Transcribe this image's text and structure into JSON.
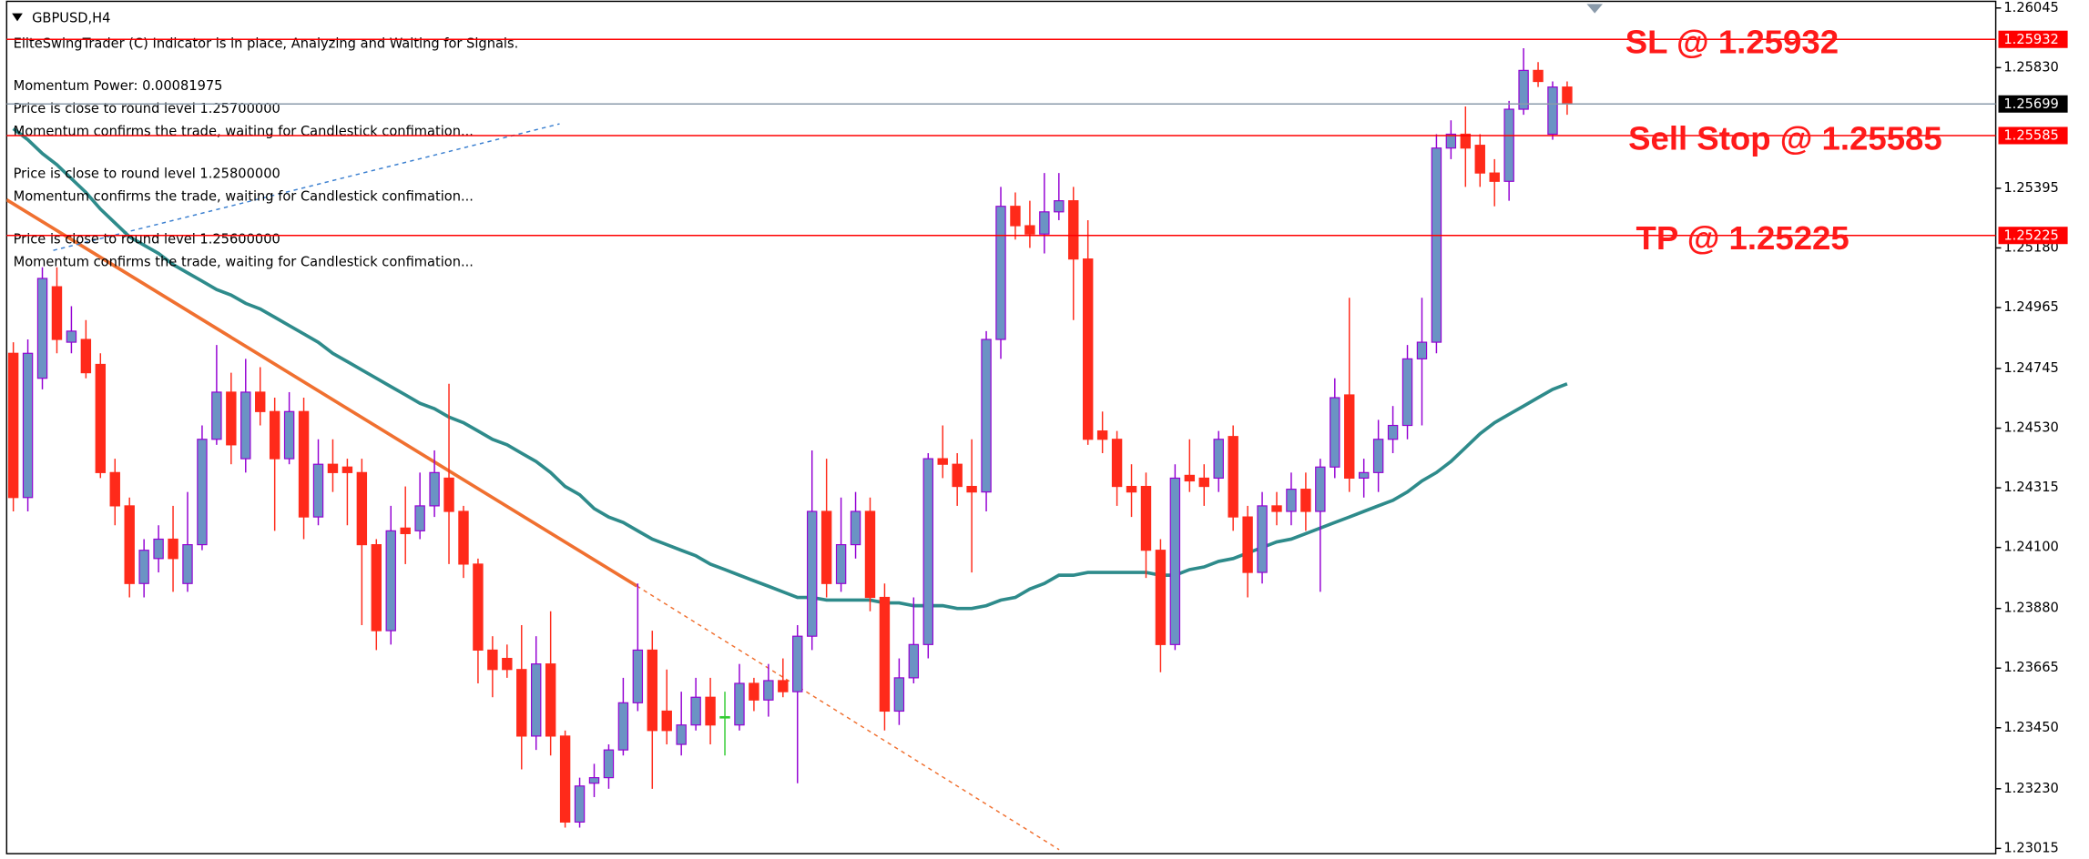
{
  "chart_data": {
    "type": "candlestick",
    "title": "GBPUSD,H4",
    "annotations": [
      "EliteSwingTrader (C) Indicator is in place, Analyzing and Waiting for Signals.",
      "Momentum Power: 0.00081975",
      "Price is close to round level 1.25700000",
      "Momentum confirms the trade, waiting for Candlestick confimation...",
      "Price is close to round level 1.25800000",
      "Momentum confirms the trade, waiting for Candlestick confimation...",
      "Price is close to round level 1.25600000",
      "Momentum confirms the trade, waiting for Candlestick confimation..."
    ],
    "ylim": [
      1.22996,
      1.26069
    ],
    "yticks": [
      1.26045,
      {
        "value": 1.2583,
        "label": "1.25830"
      },
      1.25395,
      {
        "value": 1.2518,
        "label": "1.25180"
      },
      1.24965,
      1.24745,
      {
        "value": 1.2453,
        "label": "1.24530"
      },
      1.24315,
      {
        "value": 1.241,
        "label": "1.24100"
      },
      {
        "value": 1.2388,
        "label": "1.23880"
      },
      1.23665,
      {
        "value": 1.2345,
        "label": "1.23450"
      },
      {
        "value": 1.2323,
        "label": "1.23230"
      },
      1.23015
    ],
    "colors": {
      "up_body": "#6b93c4",
      "up_wick": "#9400d3",
      "down": "#ff2a1a",
      "doji": "#33cc33"
    },
    "ohlc": [
      [
        1.248,
        1.2484,
        1.2423,
        1.2428
      ],
      [
        1.2428,
        1.2485,
        1.2423,
        1.248
      ],
      [
        1.2471,
        1.2511,
        1.2467,
        1.2507
      ],
      [
        1.2504,
        1.2511,
        1.248,
        1.2485
      ],
      [
        1.2484,
        1.2497,
        1.248,
        1.2488
      ],
      [
        1.2485,
        1.2492,
        1.2471,
        1.2473
      ],
      [
        1.2476,
        1.248,
        1.2435,
        1.2437
      ],
      [
        1.2437,
        1.2442,
        1.2418,
        1.2425
      ],
      [
        1.2425,
        1.2428,
        1.2392,
        1.2397
      ],
      [
        1.2397,
        1.2413,
        1.2392,
        1.2409
      ],
      [
        1.2406,
        1.2418,
        1.2401,
        1.2413
      ],
      [
        1.2413,
        1.2425,
        1.2394,
        1.2406
      ],
      [
        1.2397,
        1.243,
        1.2394,
        1.2411
      ],
      [
        1.2411,
        1.2454,
        1.2409,
        1.2449
      ],
      [
        1.2449,
        1.2483,
        1.2447,
        1.2466
      ],
      [
        1.2466,
        1.2473,
        1.244,
        1.2447
      ],
      [
        1.2442,
        1.2478,
        1.2437,
        1.2466
      ],
      [
        1.2466,
        1.2475,
        1.2454,
        1.2459
      ],
      [
        1.2459,
        1.2464,
        1.2416,
        1.2442
      ],
      [
        1.2442,
        1.2466,
        1.244,
        1.2459
      ],
      [
        1.2459,
        1.2464,
        1.2413,
        1.2421
      ],
      [
        1.2421,
        1.2449,
        1.2418,
        1.244
      ],
      [
        1.244,
        1.2449,
        1.243,
        1.2437
      ],
      [
        1.2439,
        1.2442,
        1.2418,
        1.2437
      ],
      [
        1.2437,
        1.2442,
        1.2382,
        1.2411
      ],
      [
        1.2411,
        1.2413,
        1.2373,
        1.238
      ],
      [
        1.238,
        1.2425,
        1.2375,
        1.2416
      ],
      [
        1.2417,
        1.2432,
        1.2404,
        1.2415
      ],
      [
        1.2416,
        1.2437,
        1.2413,
        1.2425
      ],
      [
        1.2425,
        1.2445,
        1.2421,
        1.2437
      ],
      [
        1.2435,
        1.2469,
        1.2404,
        1.2423
      ],
      [
        1.2423,
        1.2425,
        1.2399,
        1.2404
      ],
      [
        1.2404,
        1.2406,
        1.2361,
        1.2373
      ],
      [
        1.2373,
        1.2378,
        1.2356,
        1.2366
      ],
      [
        1.237,
        1.2375,
        1.2363,
        1.2366
      ],
      [
        1.2366,
        1.2382,
        1.233,
        1.2342
      ],
      [
        1.2342,
        1.2378,
        1.2337,
        1.2368
      ],
      [
        1.2368,
        1.2387,
        1.2335,
        1.2342
      ],
      [
        1.2342,
        1.2344,
        1.2309,
        1.2311
      ],
      [
        1.2311,
        1.2327,
        1.2309,
        1.2324
      ],
      [
        1.2325,
        1.2332,
        1.232,
        1.2327
      ],
      [
        1.2327,
        1.2339,
        1.2323,
        1.2337
      ],
      [
        1.2337,
        1.2363,
        1.2335,
        1.2354
      ],
      [
        1.2354,
        1.2397,
        1.2351,
        1.2373
      ],
      [
        1.2373,
        1.238,
        1.2323,
        1.2344
      ],
      [
        1.2351,
        1.2366,
        1.2339,
        1.2344
      ],
      [
        1.2339,
        1.2358,
        1.2335,
        1.2346
      ],
      [
        1.2346,
        1.2363,
        1.2344,
        1.2356
      ],
      [
        1.2356,
        1.2363,
        1.2339,
        1.2346
      ],
      [
        1.2349,
        1.2358,
        1.2335,
        1.2349
      ],
      [
        1.2346,
        1.2368,
        1.2344,
        1.2361
      ],
      [
        1.2361,
        1.2363,
        1.2351,
        1.2355
      ],
      [
        1.2355,
        1.2368,
        1.2349,
        1.2362
      ],
      [
        1.2362,
        1.237,
        1.2356,
        1.2358
      ],
      [
        1.2358,
        1.2382,
        1.2325,
        1.2378
      ],
      [
        1.2378,
        1.2445,
        1.2373,
        1.2423
      ],
      [
        1.2423,
        1.2442,
        1.2392,
        1.2397
      ],
      [
        1.2397,
        1.2428,
        1.2394,
        1.2411
      ],
      [
        1.2411,
        1.243,
        1.2406,
        1.2423
      ],
      [
        1.2423,
        1.2428,
        1.2387,
        1.2392
      ],
      [
        1.2392,
        1.2397,
        1.2344,
        1.2351
      ],
      [
        1.2351,
        1.237,
        1.2346,
        1.2363
      ],
      [
        1.2363,
        1.2392,
        1.2361,
        1.2375
      ],
      [
        1.2375,
        1.2444,
        1.237,
        1.2442
      ],
      [
        1.2442,
        1.2454,
        1.2435,
        1.244
      ],
      [
        1.244,
        1.2444,
        1.2425,
        1.2432
      ],
      [
        1.2432,
        1.2449,
        1.2401,
        1.243
      ],
      [
        1.243,
        1.2488,
        1.2423,
        1.2485
      ],
      [
        1.2485,
        1.254,
        1.2478,
        1.2533
      ],
      [
        1.2533,
        1.2538,
        1.2521,
        1.2526
      ],
      [
        1.2526,
        1.2535,
        1.2518,
        1.2523
      ],
      [
        1.2523,
        1.2545,
        1.2516,
        1.2531
      ],
      [
        1.2531,
        1.2545,
        1.2528,
        1.2535
      ],
      [
        1.2535,
        1.254,
        1.2492,
        1.2514
      ],
      [
        1.2514,
        1.2528,
        1.2447,
        1.2449
      ],
      [
        1.2452,
        1.2459,
        1.2444,
        1.2449
      ],
      [
        1.2449,
        1.2452,
        1.2425,
        1.2432
      ],
      [
        1.2432,
        1.244,
        1.2421,
        1.243
      ],
      [
        1.2432,
        1.2437,
        1.2399,
        1.2409
      ],
      [
        1.2409,
        1.2413,
        1.2365,
        1.2375
      ],
      [
        1.2375,
        1.244,
        1.2373,
        1.2435
      ],
      [
        1.2436,
        1.2449,
        1.243,
        1.2434
      ],
      [
        1.2435,
        1.244,
        1.2425,
        1.2432
      ],
      [
        1.2435,
        1.2452,
        1.243,
        1.2449
      ],
      [
        1.245,
        1.2454,
        1.2416,
        1.2421
      ],
      [
        1.2421,
        1.2425,
        1.2392,
        1.2401
      ],
      [
        1.2401,
        1.243,
        1.2397,
        1.2425
      ],
      [
        1.2425,
        1.243,
        1.2418,
        1.2423
      ],
      [
        1.2423,
        1.2437,
        1.2418,
        1.2431
      ],
      [
        1.2431,
        1.2437,
        1.2416,
        1.2423
      ],
      [
        1.2423,
        1.2442,
        1.2394,
        1.2439
      ],
      [
        1.2439,
        1.2471,
        1.2435,
        1.2464
      ],
      [
        1.2465,
        1.25,
        1.243,
        1.2435
      ],
      [
        1.2435,
        1.2442,
        1.2428,
        1.2437
      ],
      [
        1.2437,
        1.2456,
        1.243,
        1.2449
      ],
      [
        1.2449,
        1.2461,
        1.2444,
        1.2454
      ],
      [
        1.2454,
        1.2483,
        1.2449,
        1.2478
      ],
      [
        1.2478,
        1.25,
        1.2454,
        1.2484
      ],
      [
        1.2484,
        1.2559,
        1.248,
        1.2554
      ],
      [
        1.2554,
        1.2564,
        1.255,
        1.2559
      ],
      [
        1.2559,
        1.2569,
        1.254,
        1.2554
      ],
      [
        1.2555,
        1.2559,
        1.254,
        1.2545
      ],
      [
        1.2545,
        1.255,
        1.2533,
        1.2542
      ],
      [
        1.2542,
        1.2571,
        1.2535,
        1.2568
      ],
      [
        1.2568,
        1.259,
        1.2566,
        1.2582
      ],
      [
        1.2582,
        1.2585,
        1.2576,
        1.2578
      ],
      [
        1.2559,
        1.2578,
        1.2557,
        1.2576
      ],
      [
        1.2576,
        1.2578,
        1.2566,
        1.257
      ]
    ],
    "ma": {
      "color": "#2e8b8b",
      "values": [
        1.2561,
        1.2557,
        1.2552,
        1.2548,
        1.2543,
        1.2538,
        1.2532,
        1.2527,
        1.2522,
        1.2519,
        1.2516,
        1.2512,
        1.2509,
        1.2506,
        1.2503,
        1.2501,
        1.2498,
        1.2496,
        1.2493,
        1.249,
        1.2487,
        1.2484,
        1.248,
        1.2477,
        1.2474,
        1.2471,
        1.2468,
        1.2465,
        1.2462,
        1.246,
        1.2457,
        1.2455,
        1.2452,
        1.2449,
        1.2447,
        1.2444,
        1.2441,
        1.2437,
        1.2432,
        1.2429,
        1.2424,
        1.2421,
        1.2419,
        1.2416,
        1.2413,
        1.2411,
        1.2409,
        1.2407,
        1.2404,
        1.2402,
        1.24,
        1.2398,
        1.2396,
        1.2394,
        1.2392,
        1.2392,
        1.2391,
        1.2391,
        1.2391,
        1.2391,
        1.239,
        1.239,
        1.2389,
        1.2389,
        1.2389,
        1.2388,
        1.2388,
        1.2389,
        1.2391,
        1.2392,
        1.2395,
        1.2397,
        1.24,
        1.24,
        1.2401,
        1.2401,
        1.2401,
        1.2401,
        1.2401,
        1.24,
        1.24,
        1.2402,
        1.2403,
        1.2405,
        1.2406,
        1.2408,
        1.241,
        1.2412,
        1.2413,
        1.2415,
        1.2417,
        1.2419,
        1.2421,
        1.2423,
        1.2425,
        1.2427,
        1.243,
        1.2434,
        1.2437,
        1.2441,
        1.2446,
        1.2451,
        1.2455,
        1.2458,
        1.2461,
        1.2464,
        1.2467,
        1.2469
      ]
    },
    "levels": [
      {
        "name": "SL @ 1.25932",
        "value": 1.25932,
        "color": "#ff0000",
        "box": "#ff0000"
      },
      {
        "value": 1.25699,
        "color": "#8a9aaa",
        "box": "#000000"
      },
      {
        "name": "Sell Stop @ 1.25585",
        "value": 1.25585,
        "color": "#ff0000",
        "box": "#ff0000"
      },
      {
        "name": "TP @ 1.25225",
        "value": 1.25225,
        "color": "#ff0000",
        "box": "#ff0000"
      }
    ]
  }
}
